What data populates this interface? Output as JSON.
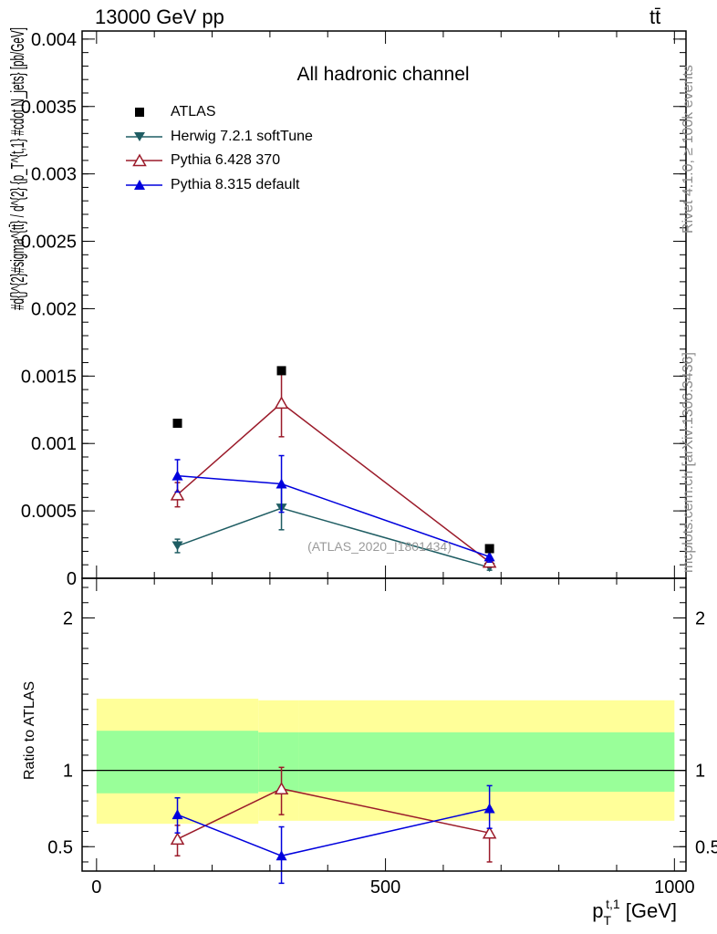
{
  "header": {
    "energy_label": "13000 GeV pp",
    "process_label": "tt̄"
  },
  "side_labels": {
    "rivet": "Rivet 4.1.0, ≥ 100k events",
    "mcplots": "mcplots.cern.ch [arXiv:1306.3436]"
  },
  "chart_data": [
    {
      "type": "scatter",
      "title": "All hadronic channel",
      "watermark": "(ATLAS_2020_I1801434)",
      "xlabel": "p_T^{t,1} [GeV]",
      "ylabel": "#d{}^{2}#sigma^{tt̄} / d^{2} {p_T^{t,1} #cdot N_jets} [pb/GeV]",
      "xlim": [
        -25,
        1020
      ],
      "ylim": [
        0,
        0.00406
      ],
      "x_ticks": [
        0,
        500,
        1000
      ],
      "y_ticks": [
        0,
        0.0005,
        0.001,
        0.0015,
        0.002,
        0.0025,
        0.003,
        0.0035,
        0.004
      ],
      "y_tick_labels": [
        "0",
        "0.0005",
        "0.001",
        "0.0015",
        "0.002",
        "0.0025",
        "0.003",
        "0.0035",
        "0.004"
      ],
      "bins": [
        {
          "low": 0,
          "high": 280,
          "center": 140
        },
        {
          "low": 280,
          "high": 400,
          "center": 320
        },
        {
          "low": 400,
          "high": 1000,
          "center": 680
        }
      ],
      "legend": [
        {
          "name": "ATLAS",
          "color": "#000000",
          "marker": "square"
        },
        {
          "name": "Herwig 7.2.1 softTune",
          "color": "#1f5d63",
          "marker": "triangle-down"
        },
        {
          "name": "Pythia 6.428 370",
          "color": "#9b1b2a",
          "marker": "triangle-open"
        },
        {
          "name": "Pythia 8.315 default",
          "color": "#0000dd",
          "marker": "triangle-up"
        }
      ],
      "series": [
        {
          "name": "ATLAS",
          "x": [
            140,
            320,
            680
          ],
          "y": [
            0.00115,
            0.00154,
            0.00022
          ],
          "yerr": [
            0,
            0,
            0
          ]
        },
        {
          "name": "Herwig 7.2.1 softTune",
          "x": [
            140,
            320,
            680
          ],
          "y": [
            0.00024,
            0.00052,
            8e-05
          ],
          "yerr": [
            5e-05,
            0.00016,
            2e-05
          ]
        },
        {
          "name": "Pythia 6.428 370",
          "x": [
            140,
            320,
            680
          ],
          "y": [
            0.00062,
            0.0013,
            0.00012
          ],
          "yerr": [
            9e-05,
            0.00025,
            3e-05
          ]
        },
        {
          "name": "Pythia 8.315 default",
          "x": [
            140,
            320,
            680
          ],
          "y": [
            0.00076,
            0.0007,
            0.00016
          ],
          "yerr": [
            0.00012,
            0.00021,
            4e-05
          ]
        }
      ]
    },
    {
      "type": "scatter",
      "title": "",
      "xlabel": "p_T^{t,1} [GeV]",
      "ylabel": "Ratio to ATLAS",
      "xlim": [
        -25,
        1020
      ],
      "ylim": [
        0.34,
        2.26
      ],
      "x_ticks": [
        0,
        500,
        1000
      ],
      "x_tick_labels": [
        "0",
        "500",
        "1000"
      ],
      "y_ticks": [
        0.5,
        1,
        2
      ],
      "y_tick_labels": [
        "0.5",
        "1",
        "2"
      ],
      "reference_line": 1,
      "bands": [
        {
          "low": 0,
          "high": 280,
          "yellow": [
            0.65,
            1.47
          ],
          "green": [
            0.85,
            1.26
          ]
        },
        {
          "low": 280,
          "high": 350,
          "yellow": [
            0.67,
            1.46
          ],
          "green": [
            0.86,
            1.25
          ]
        },
        {
          "low": 350,
          "high": 1000,
          "yellow": [
            0.67,
            1.46
          ],
          "green": [
            0.86,
            1.25
          ]
        }
      ],
      "series": [
        {
          "name": "Pythia 6.428 370",
          "x": [
            140,
            320,
            680
          ],
          "y": [
            0.55,
            0.88,
            0.59
          ],
          "yerr_low": [
            0.11,
            0.17,
            0.19
          ],
          "yerr_high": [
            0.09,
            0.14,
            0.01
          ]
        },
        {
          "name": "Pythia 8.315 default",
          "x": [
            140,
            320,
            680
          ],
          "y": [
            0.71,
            0.44,
            0.75
          ],
          "yerr_low": [
            0.12,
            0.18,
            0.13
          ],
          "yerr_high": [
            0.11,
            0.19,
            0.15
          ]
        }
      ]
    }
  ]
}
